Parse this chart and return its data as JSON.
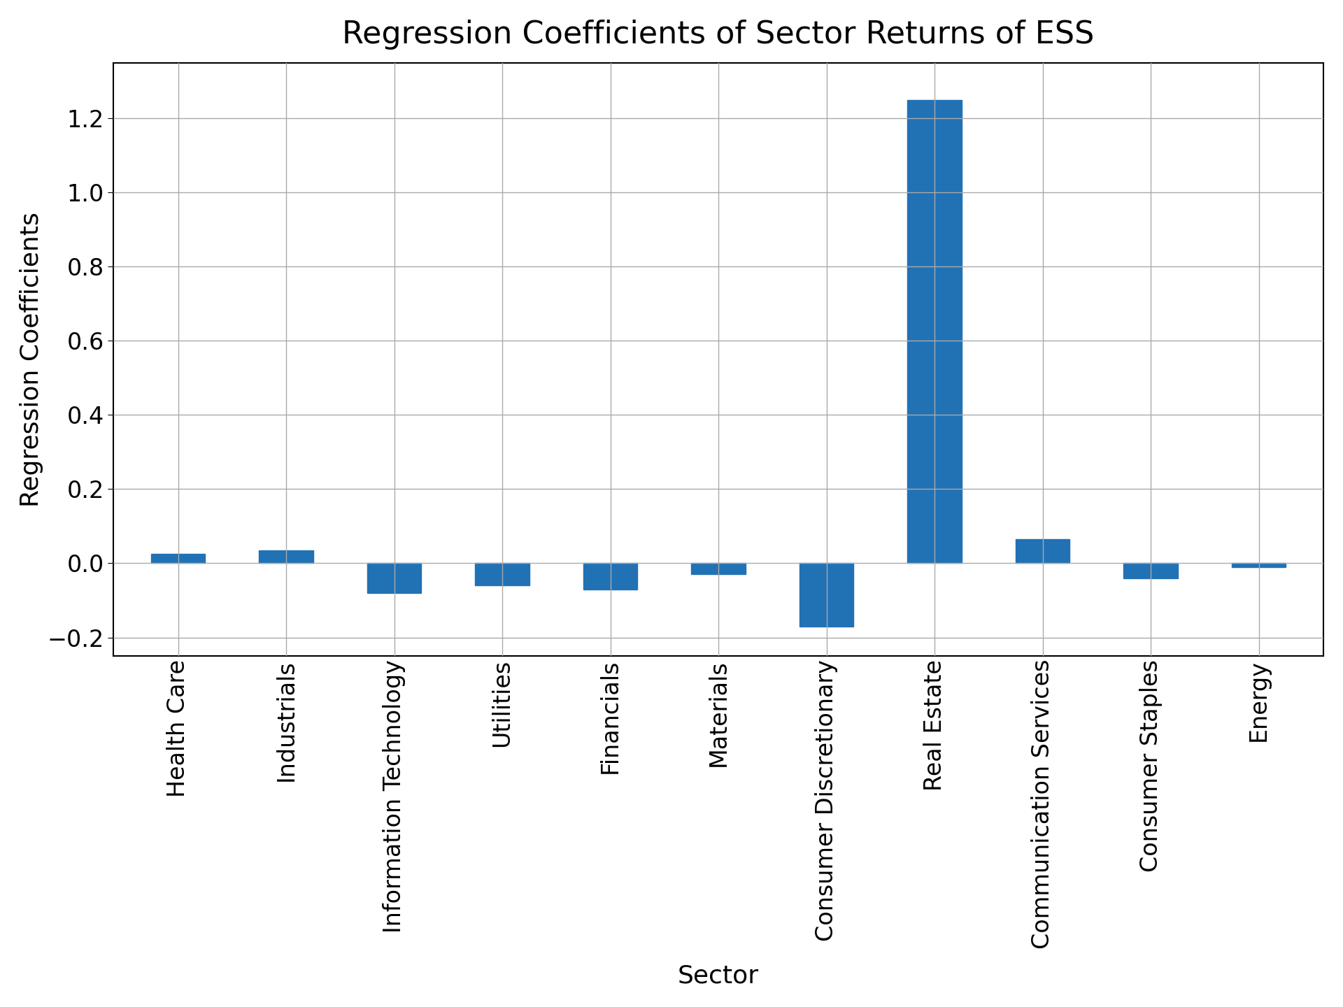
{
  "categories": [
    "Health Care",
    "Industrials",
    "Information Technology",
    "Utilities",
    "Financials",
    "Materials",
    "Consumer Discretionary",
    "Real Estate",
    "Communication Services",
    "Consumer Staples",
    "Energy"
  ],
  "values": [
    0.025,
    0.035,
    -0.08,
    -0.06,
    -0.07,
    -0.03,
    -0.17,
    1.25,
    0.065,
    -0.04,
    -0.01
  ],
  "bar_color": "#2171b5",
  "title": "Regression Coefficients of Sector Returns of ESS",
  "xlabel": "Sector",
  "ylabel": "Regression Coefficients",
  "ylim": [
    -0.25,
    1.35
  ],
  "yticks": [
    -0.2,
    0.0,
    0.2,
    0.4,
    0.6,
    0.8,
    1.0,
    1.2
  ],
  "title_fontsize": 32,
  "label_fontsize": 26,
  "tick_fontsize": 24,
  "background_color": "#ffffff",
  "grid_color": "#aaaaaa",
  "bar_width": 0.5
}
